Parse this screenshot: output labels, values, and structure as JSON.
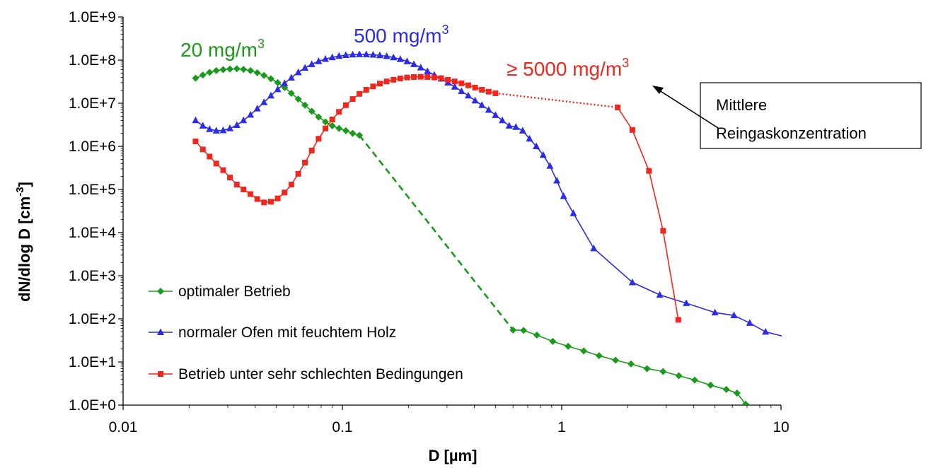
{
  "chart_data": {
    "type": "line",
    "xlabel": "D [µm]",
    "ylabel_main": "dN/dlog D [cm",
    "ylabel_sup": "-3",
    "ylabel_end": "]",
    "x_scale": "log",
    "y_scale": "log",
    "xlim": [
      0.01,
      10
    ],
    "ylim": [
      1,
      1000000000
    ],
    "x_tick_labels": [
      {
        "value": 0.01,
        "label": "0.01"
      },
      {
        "value": 0.1,
        "label": "0.1"
      },
      {
        "value": 1,
        "label": "1"
      },
      {
        "value": 10,
        "label": "10"
      }
    ],
    "y_tick_labels": [
      {
        "value": 1,
        "label": "1.0E+0"
      },
      {
        "value": 10,
        "label": "1.0E+1"
      },
      {
        "value": 100,
        "label": "1.0E+2"
      },
      {
        "value": 1000,
        "label": "1.0E+3"
      },
      {
        "value": 10000,
        "label": "1.0E+4"
      },
      {
        "value": 100000,
        "label": "1.0E+5"
      },
      {
        "value": 1000000,
        "label": "1.0E+6"
      },
      {
        "value": 10000000,
        "label": "1.0E+7"
      },
      {
        "value": 100000000,
        "label": "1.0E+8"
      },
      {
        "value": 1000000000,
        "label": "1.0E+9"
      }
    ],
    "grid": false,
    "legend_position": "bottom-left",
    "series": [
      {
        "name": "optimaler Betrieb",
        "color": "#1a9a1a",
        "marker": "diamond",
        "segments": [
          {
            "style": "solid",
            "markers": true,
            "points": [
              [
                0.0214,
                38000000
              ],
              [
                0.0231,
                45000000
              ],
              [
                0.0248,
                52000000
              ],
              [
                0.0266,
                57000000
              ],
              [
                0.0286,
                60000000
              ],
              [
                0.0307,
                62000000
              ],
              [
                0.033,
                63000000
              ],
              [
                0.0354,
                61000000
              ],
              [
                0.0381,
                57000000
              ],
              [
                0.0409,
                51000000
              ],
              [
                0.0439,
                44000000
              ],
              [
                0.0472,
                37000000
              ],
              [
                0.0507,
                30000000
              ],
              [
                0.0545,
                23000000
              ],
              [
                0.0585,
                17000000
              ],
              [
                0.0629,
                12500000
              ],
              [
                0.0675,
                9000000
              ],
              [
                0.0725,
                6500000
              ],
              [
                0.0779,
                4800000
              ],
              [
                0.0837,
                3700000
              ],
              [
                0.0899,
                3000000
              ],
              [
                0.0965,
                2600000
              ],
              [
                0.1037,
                2300000
              ],
              [
                0.1114,
                2000000
              ],
              [
                0.1196,
                1800000
              ]
            ]
          },
          {
            "style": "dashed",
            "markers": false,
            "points": [
              [
                0.1196,
                1800000
              ],
              [
                0.6,
                55
              ]
            ]
          },
          {
            "style": "solid",
            "markers": true,
            "points": [
              [
                0.6,
                55
              ],
              [
                0.67,
                54
              ],
              [
                0.77,
                42
              ],
              [
                0.91,
                30
              ],
              [
                1.07,
                23
              ],
              [
                1.26,
                18
              ],
              [
                1.48,
                14
              ],
              [
                1.76,
                11
              ],
              [
                2.07,
                9
              ],
              [
                2.45,
                7
              ],
              [
                2.9,
                6
              ],
              [
                3.42,
                4.8
              ],
              [
                4.04,
                3.8
              ],
              [
                4.77,
                2.9
              ],
              [
                5.63,
                2.3
              ],
              [
                6.3,
                1.9
              ],
              [
                6.9,
                1.05
              ],
              [
                7.5,
                0.8
              ]
            ]
          }
        ]
      },
      {
        "name": "normaler Ofen mit feuchtem Holz",
        "color": "#2b2bea",
        "marker": "triangle",
        "segments": [
          {
            "style": "solid",
            "markers": true,
            "points": [
              [
                0.0214,
                4000000
              ],
              [
                0.0231,
                3000000
              ],
              [
                0.0248,
                2500000
              ],
              [
                0.0266,
                2300000
              ],
              [
                0.0286,
                2350000
              ],
              [
                0.0307,
                2600000
              ],
              [
                0.033,
                3100000
              ],
              [
                0.0354,
                4000000
              ],
              [
                0.0381,
                5400000
              ],
              [
                0.0409,
                7500000
              ],
              [
                0.0439,
                10500000
              ],
              [
                0.0472,
                15000000
              ],
              [
                0.0507,
                21000000
              ],
              [
                0.0545,
                29000000
              ],
              [
                0.0585,
                39000000
              ],
              [
                0.0629,
                52000000
              ],
              [
                0.0675,
                66000000
              ],
              [
                0.0725,
                80000000
              ],
              [
                0.0779,
                94000000
              ],
              [
                0.0837,
                106000000
              ],
              [
                0.0899,
                116000000
              ],
              [
                0.0965,
                124000000
              ],
              [
                0.1037,
                130000000
              ],
              [
                0.1114,
                134000000
              ],
              [
                0.1196,
                136000000
              ],
              [
                0.1285,
                135000000
              ],
              [
                0.138,
                133000000
              ],
              [
                0.1482,
                129000000
              ],
              [
                0.1592,
                123000000
              ],
              [
                0.171,
                115000000
              ],
              [
                0.1836,
                105000000
              ],
              [
                0.1972,
                93000000
              ],
              [
                0.2118,
                80000000
              ],
              [
                0.2275,
                67000000
              ],
              [
                0.2443,
                55000000
              ],
              [
                0.2624,
                45000000
              ],
              [
                0.2818,
                37000000
              ],
              [
                0.3027,
                30000000
              ],
              [
                0.3251,
                24000000
              ],
              [
                0.3492,
                19000000
              ],
              [
                0.375,
                15000000
              ],
              [
                0.4028,
                11500000
              ],
              [
                0.4326,
                9000000
              ],
              [
                0.4646,
                7000000
              ],
              [
                0.499,
                5300000
              ],
              [
                0.536,
                4000000
              ],
              [
                0.576,
                3000000
              ],
              [
                0.618,
                2800000
              ],
              [
                0.664,
                2300000
              ],
              [
                0.713,
                1500000
              ],
              [
                0.766,
                1000000
              ],
              [
                0.823,
                630000
              ],
              [
                0.884,
                350000
              ],
              [
                0.95,
                160000
              ],
              [
                1.02,
                70000
              ],
              [
                1.13,
                28000
              ],
              [
                1.4,
                4300
              ],
              [
                2.1,
                700
              ],
              [
                2.8,
                360
              ],
              [
                3.7,
                230
              ],
              [
                5.0,
                140
              ],
              [
                6.1,
                120
              ],
              [
                7.2,
                80
              ],
              [
                8.5,
                50
              ],
              [
                10.5,
                38
              ]
            ]
          }
        ]
      },
      {
        "name": "Betrieb unter sehr schlechten Bedingungen",
        "color": "#f0271c",
        "marker": "square",
        "segments": [
          {
            "style": "solid",
            "markers": true,
            "points": [
              [
                0.0214,
                1300000
              ],
              [
                0.0231,
                850000
              ],
              [
                0.0248,
                580000
              ],
              [
                0.0266,
                400000
              ],
              [
                0.0286,
                280000
              ],
              [
                0.0307,
                190000
              ],
              [
                0.033,
                130000
              ],
              [
                0.0354,
                100000
              ],
              [
                0.0381,
                78000
              ],
              [
                0.0409,
                60000
              ],
              [
                0.0439,
                50000
              ],
              [
                0.0472,
                52000
              ],
              [
                0.0507,
                62000
              ],
              [
                0.0545,
                85000
              ],
              [
                0.0585,
                130000
              ],
              [
                0.0629,
                230000
              ],
              [
                0.0675,
                420000
              ],
              [
                0.0725,
                800000
              ],
              [
                0.0779,
                1500000
              ],
              [
                0.0837,
                2600000
              ],
              [
                0.0899,
                4200000
              ],
              [
                0.0965,
                6300000
              ],
              [
                0.1037,
                9000000
              ],
              [
                0.1114,
                12500000
              ],
              [
                0.1196,
                16500000
              ],
              [
                0.1285,
                20500000
              ],
              [
                0.138,
                24500000
              ],
              [
                0.1482,
                28500000
              ],
              [
                0.1592,
                32000000
              ],
              [
                0.171,
                35000000
              ],
              [
                0.1836,
                37500000
              ],
              [
                0.1972,
                39500000
              ],
              [
                0.2118,
                40500000
              ],
              [
                0.2275,
                41000000
              ],
              [
                0.2443,
                40500000
              ],
              [
                0.2624,
                39500000
              ],
              [
                0.2818,
                38000000
              ],
              [
                0.3027,
                35000000
              ],
              [
                0.3251,
                32000000
              ],
              [
                0.3492,
                29000000
              ],
              [
                0.375,
                26000000
              ],
              [
                0.4028,
                23000000
              ],
              [
                0.4326,
                20500000
              ],
              [
                0.4646,
                18500000
              ],
              [
                0.499,
                17000000
              ]
            ]
          },
          {
            "style": "dotted",
            "markers": false,
            "points": [
              [
                0.499,
                17000000
              ],
              [
                1.8,
                8000000
              ]
            ]
          },
          {
            "style": "solid",
            "markers": true,
            "points": [
              [
                1.8,
                8000000
              ],
              [
                2.1,
                2400000
              ],
              [
                2.5,
                270000
              ],
              [
                2.9,
                11000
              ],
              [
                3.4,
                95
              ]
            ]
          }
        ]
      }
    ],
    "annotations": [
      {
        "label": "20 mg/m",
        "sup": "3",
        "color": "#1a9a1a"
      },
      {
        "label": "500 mg/m",
        "sup": "3",
        "color": "#2b2bea"
      },
      {
        "label": "≥ 5000 mg/m",
        "sup": "3",
        "color": "#f0271c"
      }
    ],
    "callout": {
      "line1": "Mittlere",
      "line2": "Reingaskonzentration"
    }
  }
}
